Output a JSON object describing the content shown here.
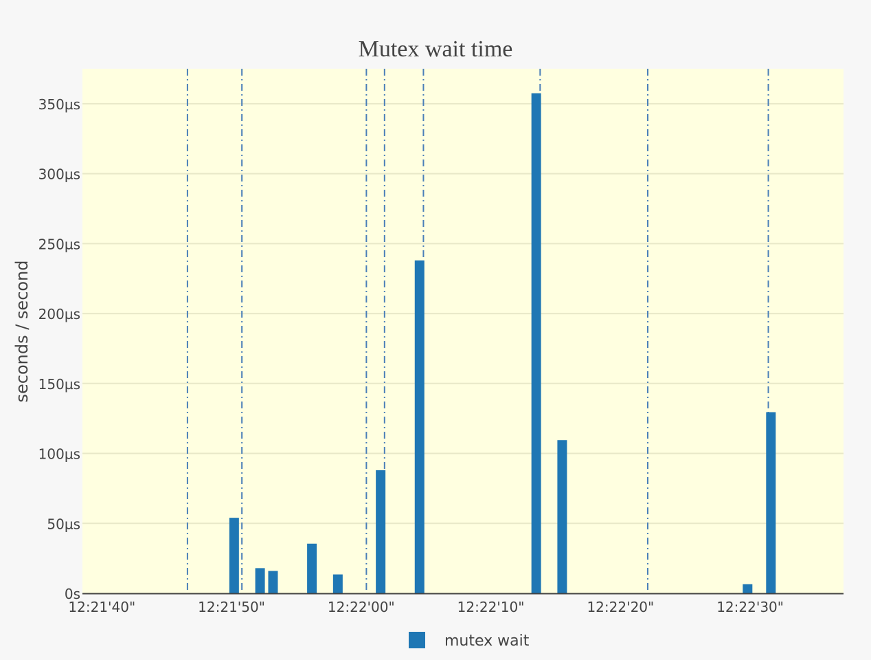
{
  "chart_data": {
    "type": "bar",
    "title": "Mutex wait time",
    "xlabel": "",
    "ylabel": "seconds / second",
    "y_unit": "µs",
    "ylim": [
      0,
      375
    ],
    "xlim": [
      "12:21:38.5",
      "12:22:37.2"
    ],
    "x_ticks": [
      "12:21'40\"",
      "12:21'50\"",
      "12:22'00\"",
      "12:22'10\"",
      "12:22'20\"",
      "12:22'30\""
    ],
    "x_tick_times": [
      "12:21:40",
      "12:21:50",
      "12:22:00",
      "12:22:10",
      "12:22:20",
      "12:22:30"
    ],
    "y_ticks": [
      "0s",
      "50µs",
      "100µs",
      "150µs",
      "200µs",
      "250µs",
      "300µs",
      "350µs"
    ],
    "y_tick_values": [
      0,
      50,
      100,
      150,
      200,
      250,
      300,
      350
    ],
    "grid": true,
    "legend_position": "bottom-center",
    "series": [
      {
        "name": "mutex wait",
        "color": "#1f77b4",
        "x": [
          "12:21:50.2",
          "12:21:52.2",
          "12:21:53.2",
          "12:21:56.2",
          "12:21:58.2",
          "12:22:01.5",
          "12:22:04.5",
          "12:22:13.5",
          "12:22:15.5",
          "12:22:29.8",
          "12:22:31.6"
        ],
        "values": [
          54,
          18,
          16,
          35.5,
          13.5,
          88,
          238,
          357.5,
          109.5,
          6.5,
          129.5
        ]
      }
    ],
    "event_lines": [
      "12:21:46.6",
      "12:21:50.8",
      "12:22:00.4",
      "12:22:01.8",
      "12:22:04.8",
      "12:22:13.8",
      "12:22:22.1",
      "12:22:31.4"
    ],
    "event_line_color": "#4a7fb8",
    "plot_background": "#ffffe0"
  }
}
